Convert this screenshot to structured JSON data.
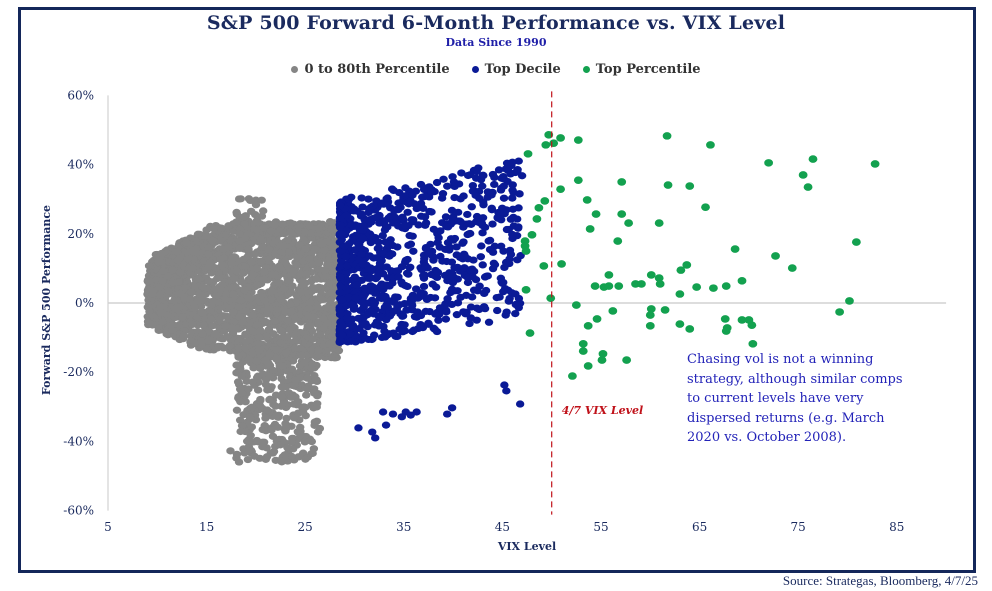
{
  "chart_data": {
    "type": "scatter",
    "title": "S&P 500 Forward 6-Month Performance vs. VIX Level",
    "subtitle": "Data Since 1990",
    "xlabel": "VIX Level",
    "ylabel": "Forward S&P 500 Performance",
    "xlim": [
      5,
      90
    ],
    "ylim": [
      -60,
      60
    ],
    "x_ticks": [
      "5",
      "15",
      "25",
      "35",
      "45",
      "55",
      "65",
      "75",
      "85"
    ],
    "x_tick_values": [
      5,
      15,
      25,
      35,
      45,
      55,
      65,
      75,
      85
    ],
    "y_ticks": [
      "60%",
      "40%",
      "20%",
      "0%",
      "-20%",
      "-40%",
      "-60%"
    ],
    "y_tick_values": [
      60,
      40,
      20,
      0,
      -20,
      -40,
      -60
    ],
    "grid": false,
    "zero_line": true,
    "legend_position": "top-center",
    "reference_line": {
      "x": 50,
      "label": "4/7 VIX Level",
      "color": "#c0121a",
      "style": "dashed"
    },
    "annotation": "Chasing vol is not a winning strategy, although similar comps to current levels have very dispersed returns (e.g. March 2020 vs. October 2008).",
    "series": [
      {
        "name": "0 to 80th Percentile",
        "color": "#858585",
        "dense_cloud": {
          "count": 2600,
          "core": {
            "x_range": [
              9,
              28.5
            ],
            "y_range": [
              -13,
              20
            ]
          },
          "upper_fringe": {
            "x_range": [
              18,
              28
            ],
            "y_range": [
              20,
              32
            ]
          },
          "lower_tail": {
            "x_range": [
              16,
              29
            ],
            "y_range": [
              -46,
              -13
            ]
          }
        },
        "points": []
      },
      {
        "name": "Top Decile",
        "color": "#0a1a96",
        "dense_cloud": {
          "count": 900,
          "x_range": [
            28.5,
            47
          ],
          "y_range_at_start": [
            -12,
            30
          ],
          "y_range_at_end": [
            -5,
            42
          ]
        },
        "points": [
          [
            30.4,
            -36.1
          ],
          [
            31.8,
            -37.3
          ],
          [
            32.1,
            -39.0
          ],
          [
            33.2,
            -35.3
          ],
          [
            32.9,
            -31.5
          ],
          [
            33.9,
            -32.1
          ],
          [
            34.8,
            -32.9
          ],
          [
            35.2,
            -31.5
          ],
          [
            35.7,
            -32.4
          ],
          [
            36.3,
            -31.5
          ],
          [
            39.4,
            -32.1
          ],
          [
            39.9,
            -30.3
          ],
          [
            45.2,
            -23.7
          ],
          [
            45.4,
            -25.4
          ],
          [
            46.8,
            -29.2
          ]
        ]
      },
      {
        "name": "Top Percentile",
        "color": "#13a14f",
        "points": [
          [
            49.7,
            48.6
          ],
          [
            50.9,
            47.7
          ],
          [
            49.4,
            45.7
          ],
          [
            50.2,
            46.2
          ],
          [
            52.7,
            47.1
          ],
          [
            47.6,
            43.1
          ],
          [
            52.7,
            35.5
          ],
          [
            57.1,
            35.0
          ],
          [
            50.9,
            32.9
          ],
          [
            49.3,
            29.5
          ],
          [
            53.6,
            29.8
          ],
          [
            48.7,
            27.5
          ],
          [
            54.5,
            25.7
          ],
          [
            57.1,
            25.7
          ],
          [
            48.5,
            24.3
          ],
          [
            57.8,
            23.1
          ],
          [
            53.9,
            21.4
          ],
          [
            48.0,
            19.7
          ],
          [
            47.3,
            17.9
          ],
          [
            47.3,
            16.5
          ],
          [
            47.4,
            15.0
          ],
          [
            56.7,
            17.9
          ],
          [
            49.2,
            10.7
          ],
          [
            51.0,
            11.3
          ],
          [
            47.4,
            3.8
          ],
          [
            55.8,
            8.1
          ],
          [
            54.4,
            4.9
          ],
          [
            55.3,
            4.6
          ],
          [
            55.8,
            4.9
          ],
          [
            56.8,
            4.9
          ],
          [
            58.5,
            5.5
          ],
          [
            49.9,
            1.4
          ],
          [
            52.5,
            -0.6
          ],
          [
            56.2,
            -2.3
          ],
          [
            54.6,
            -4.6
          ],
          [
            53.7,
            -6.6
          ],
          [
            47.8,
            -8.7
          ],
          [
            53.2,
            -11.8
          ],
          [
            53.2,
            -13.9
          ],
          [
            55.2,
            -14.7
          ],
          [
            55.1,
            -16.5
          ],
          [
            57.6,
            -16.5
          ],
          [
            53.7,
            -18.2
          ],
          [
            52.1,
            -21.1
          ],
          [
            61.7,
            48.3
          ],
          [
            66.1,
            45.7
          ],
          [
            72.0,
            40.5
          ],
          [
            76.5,
            41.6
          ],
          [
            75.5,
            37.0
          ],
          [
            76.0,
            33.5
          ],
          [
            82.8,
            40.2
          ],
          [
            61.8,
            34.1
          ],
          [
            64.0,
            33.8
          ],
          [
            65.6,
            27.7
          ],
          [
            60.9,
            23.1
          ],
          [
            68.6,
            15.6
          ],
          [
            80.9,
            17.6
          ],
          [
            72.7,
            13.6
          ],
          [
            74.4,
            10.1
          ],
          [
            63.1,
            9.5
          ],
          [
            63.7,
            11.0
          ],
          [
            60.9,
            7.2
          ],
          [
            60.1,
            8.1
          ],
          [
            61.0,
            5.5
          ],
          [
            59.1,
            5.5
          ],
          [
            63.0,
            2.6
          ],
          [
            64.7,
            4.6
          ],
          [
            66.4,
            4.3
          ],
          [
            67.7,
            4.9
          ],
          [
            69.3,
            6.4
          ],
          [
            80.2,
            0.6
          ],
          [
            79.2,
            -2.6
          ],
          [
            60.1,
            -1.7
          ],
          [
            60.0,
            -3.5
          ],
          [
            61.5,
            -2.0
          ],
          [
            60.0,
            -6.6
          ],
          [
            63.0,
            -6.1
          ],
          [
            64.0,
            -7.5
          ],
          [
            67.6,
            -4.6
          ],
          [
            69.3,
            -4.9
          ],
          [
            70.0,
            -4.9
          ],
          [
            70.3,
            -6.4
          ],
          [
            67.8,
            -7.2
          ],
          [
            67.7,
            -8.1
          ],
          [
            70.4,
            -11.8
          ]
        ]
      }
    ]
  },
  "source": "Source: Strategas, Bloomberg, 4/7/25"
}
